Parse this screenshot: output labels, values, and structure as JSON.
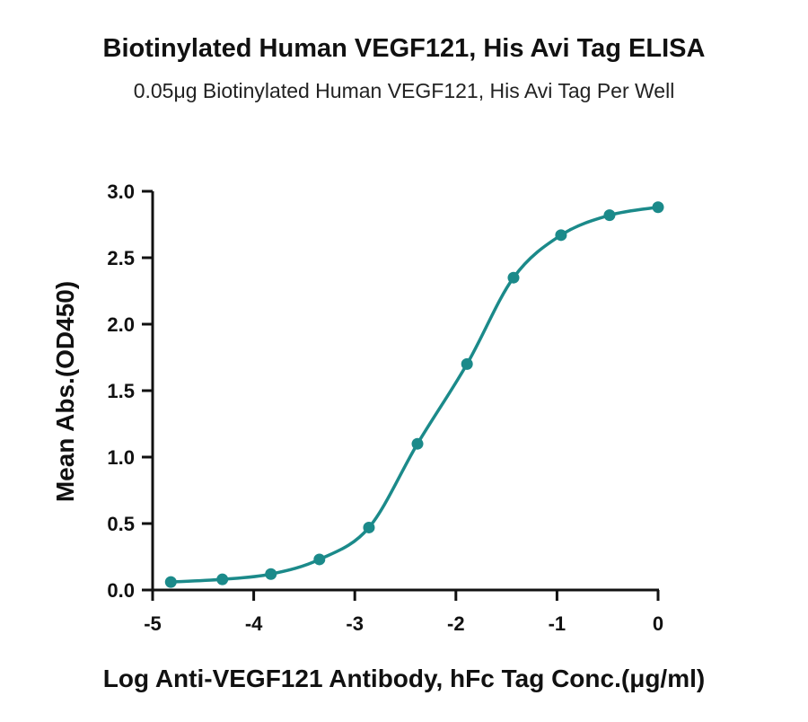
{
  "chart_data": {
    "type": "scatter",
    "title": "Biotinylated Human VEGF121, His Avi Tag ELISA",
    "subtitle": "0.05μg Biotinylated Human VEGF121, His Avi Tag Per Well",
    "xlabel": "Log Anti-VEGF121 Antibody, hFc Tag Conc.(μg/ml)",
    "ylabel": "Mean Abs.(OD450)",
    "xlim": [
      -5,
      0
    ],
    "ylim": [
      0,
      3.0
    ],
    "x_ticks": [
      "-5",
      "-4",
      "-3",
      "-2",
      "-1",
      "0"
    ],
    "y_ticks": [
      "0.0",
      "0.5",
      "1.0",
      "1.5",
      "2.0",
      "2.5",
      "3.0"
    ],
    "grid": false,
    "fit_curve": "sigmoidal",
    "series": [
      {
        "points": [
          {
            "x": -4.82,
            "y": 0.06
          },
          {
            "x": -4.31,
            "y": 0.08
          },
          {
            "x": -3.83,
            "y": 0.12
          },
          {
            "x": -3.35,
            "y": 0.23
          },
          {
            "x": -2.86,
            "y": 0.47
          },
          {
            "x": -2.38,
            "y": 1.1
          },
          {
            "x": -1.89,
            "y": 1.7
          },
          {
            "x": -1.43,
            "y": 2.35
          },
          {
            "x": -0.96,
            "y": 2.67
          },
          {
            "x": -0.48,
            "y": 2.82
          },
          {
            "x": 0.0,
            "y": 2.88
          }
        ]
      }
    ],
    "colors": {
      "series": "#1b8a8a",
      "axis": "#111111"
    }
  }
}
